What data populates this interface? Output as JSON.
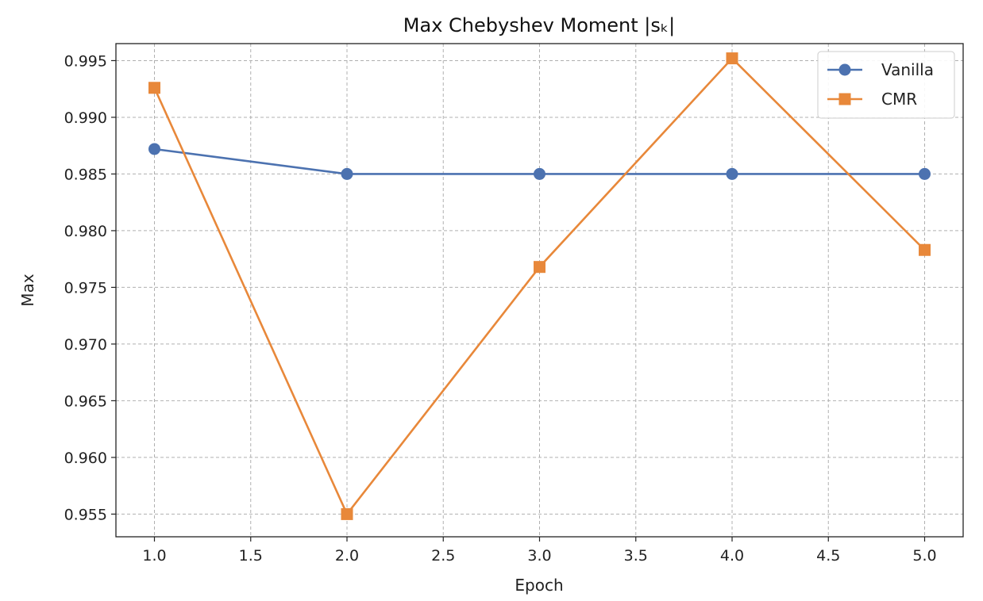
{
  "chart_data": {
    "type": "line",
    "title": "Max Chebyshev Moment |sₖ|",
    "xlabel": "Epoch",
    "ylabel": "Max",
    "x": [
      1.0,
      2.0,
      3.0,
      4.0,
      5.0
    ],
    "xlim": [
      0.8,
      5.2
    ],
    "ylim": [
      0.953,
      0.9965
    ],
    "xticks": [
      1.0,
      1.5,
      2.0,
      2.5,
      3.0,
      3.5,
      4.0,
      4.5,
      5.0
    ],
    "xtick_labels": [
      "1.0",
      "1.5",
      "2.0",
      "2.5",
      "3.0",
      "3.5",
      "4.0",
      "4.5",
      "5.0"
    ],
    "yticks": [
      0.955,
      0.96,
      0.965,
      0.97,
      0.975,
      0.98,
      0.985,
      0.99,
      0.995
    ],
    "ytick_labels": [
      "0.955",
      "0.960",
      "0.965",
      "0.970",
      "0.975",
      "0.980",
      "0.985",
      "0.990",
      "0.995"
    ],
    "grid": true,
    "legend_position": "top-right",
    "series": [
      {
        "name": "Vanilla",
        "values": [
          0.9872,
          0.985,
          0.985,
          0.985,
          0.985
        ],
        "color": "#4c72b0",
        "marker": "circle"
      },
      {
        "name": "CMR",
        "values": [
          0.9926,
          0.955,
          0.9768,
          0.9952,
          0.9783
        ],
        "color": "#e8883a",
        "marker": "square"
      }
    ]
  }
}
